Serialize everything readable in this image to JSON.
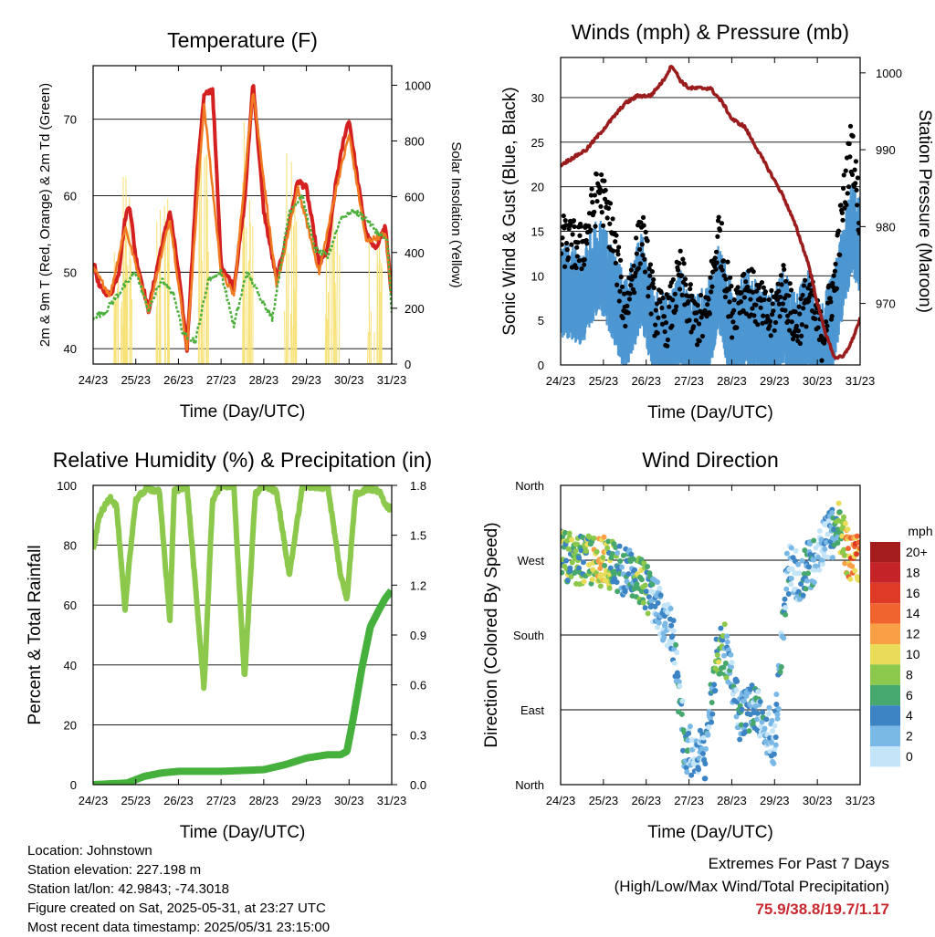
{
  "footer": {
    "location": "Location: Johnstown",
    "elevation": "Station elevation: 227.198 m",
    "latlon": "Station lat/lon: 42.9843; -74.3018",
    "created": "Figure created on Sat, 2025-05-31, at 23:27 UTC",
    "recent": "Most recent data timestamp: 2025/05/31 23:15:00"
  },
  "extremes": {
    "title": "Extremes For Past 7 Days",
    "subtitle": "(High/Low/Max Wind/Total Precipitation)",
    "values": "75.9/38.8/19.7/1.17"
  },
  "colors": {
    "temp_2m": "#d42020",
    "temp_9m": "#f07a20",
    "dewpoint": "#4caf3c",
    "solar": "#f7e27a",
    "sonic_wind": "#4d97d2",
    "gust": "#000000",
    "pressure": "#9b1c1c",
    "rh": "#8cc84b",
    "precip": "#46b03c"
  },
  "chart_data": [
    {
      "type": "line",
      "title": "Temperature (F)",
      "xlabel": "Time (Day/UTC)",
      "ylabel": "2m & 9m T (Red, Orange) & 2m Td (Green)",
      "y2label": "Solar Insolation (Yellow)",
      "xlim": [
        0,
        7
      ],
      "ylim": [
        38,
        77
      ],
      "y2lim": [
        0,
        1070
      ],
      "xticks": [
        "24/23",
        "25/23",
        "26/23",
        "27/23",
        "28/23",
        "29/23",
        "30/23",
        "31/23"
      ],
      "yticks": [
        40,
        50,
        60,
        70
      ],
      "y2ticks": [
        0,
        200,
        400,
        600,
        800,
        1000
      ],
      "grid": true,
      "series": [
        {
          "color": "#d42020",
          "x": [
            0,
            0.15,
            0.4,
            0.6,
            0.75,
            0.85,
            1,
            1.3,
            1.55,
            1.8,
            2.0,
            2.2,
            2.45,
            2.6,
            2.8,
            3.0,
            3.3,
            3.55,
            3.75,
            4.0,
            4.3,
            4.55,
            4.8,
            5.0,
            5.3,
            5.5,
            5.7,
            5.9,
            6.0,
            6.2,
            6.4,
            6.6,
            6.85,
            7.0
          ],
          "y": [
            51.5,
            48,
            47,
            50,
            57,
            59,
            52,
            45,
            52,
            58,
            50,
            40,
            64,
            73,
            74,
            51,
            48,
            59,
            75,
            58,
            49,
            55,
            62,
            61,
            51,
            53,
            62,
            68,
            70,
            62,
            55,
            53,
            56,
            47
          ]
        },
        {
          "color": "#f07a20",
          "x": [
            0,
            0.4,
            0.75,
            1.3,
            1.8,
            2.2,
            2.6,
            3.0,
            3.3,
            3.75,
            4.3,
            4.8,
            5.3,
            5.7,
            6.0,
            6.4,
            6.85,
            7.0
          ],
          "y": [
            50.5,
            47,
            56,
            45,
            57,
            40,
            72,
            50,
            47,
            74,
            48,
            61,
            50,
            61,
            68,
            54,
            55,
            47
          ]
        },
        {
          "color": "#4caf3c",
          "x": [
            0,
            0.3,
            0.7,
            1.0,
            1.3,
            1.6,
            1.9,
            2.1,
            2.4,
            2.7,
            3.0,
            3.3,
            3.6,
            3.9,
            4.2,
            4.6,
            4.9,
            5.2,
            5.5,
            5.8,
            6.1,
            6.4,
            6.7,
            6.9,
            7.0
          ],
          "y": [
            44,
            45,
            48,
            50,
            45,
            49,
            47,
            42,
            41,
            49,
            50,
            43,
            50,
            47,
            44,
            58,
            60,
            53,
            52,
            57,
            58,
            57,
            55,
            54,
            45
          ]
        }
      ],
      "solar_peaks": [
        {
          "day": 0.6,
          "peak": 500
        },
        {
          "day": 0.75,
          "peak": 910
        },
        {
          "day": 1.65,
          "peak": 650
        },
        {
          "day": 2.6,
          "peak": 1050
        },
        {
          "day": 3.6,
          "peak": 900
        },
        {
          "day": 4.6,
          "peak": 820
        },
        {
          "day": 5.6,
          "peak": 620
        },
        {
          "day": 6.6,
          "peak": 640
        }
      ]
    },
    {
      "type": "scatter",
      "title": "Winds (mph) & Pressure (mb)",
      "xlabel": "Time (Day/UTC)",
      "ylabel": "Sonic Wind & Gust (Blue, Black)",
      "y2label": "Station Pressure (Maroon)",
      "xlim": [
        0,
        7
      ],
      "ylim": [
        0,
        34.5
      ],
      "y2lim": [
        962,
        1002
      ],
      "xticks": [
        "24/23",
        "25/23",
        "26/23",
        "27/23",
        "28/23",
        "29/23",
        "30/23",
        "31/23"
      ],
      "yticks": [
        0,
        5,
        10,
        15,
        20,
        25,
        30
      ],
      "y2ticks": [
        970,
        980,
        990,
        1000
      ],
      "grid": true,
      "gust_profile": {
        "x": [
          0,
          0.5,
          0.9,
          1.2,
          1.5,
          1.9,
          2.2,
          2.5,
          2.8,
          3.1,
          3.4,
          3.7,
          4.0,
          4.3,
          4.6,
          4.9,
          5.2,
          5.5,
          5.8,
          6.1,
          6.4,
          6.6,
          6.8,
          7.0
        ],
        "y": [
          14,
          13,
          20,
          15,
          6,
          15,
          6,
          5,
          10,
          5,
          5,
          15,
          6,
          9,
          7,
          5,
          9,
          4,
          8,
          3,
          9,
          18,
          25,
          16
        ]
      },
      "wind_profile": {
        "x": [
          0,
          0.5,
          0.9,
          1.2,
          1.5,
          1.9,
          2.2,
          2.5,
          2.8,
          3.1,
          3.4,
          3.7,
          4.0,
          4.3,
          4.6,
          4.9,
          5.2,
          5.5,
          5.8,
          6.1,
          6.4,
          6.6,
          6.8,
          7.0
        ],
        "y": [
          8,
          7,
          11,
          8,
          4,
          9,
          3,
          2,
          5,
          2,
          3,
          8,
          3,
          5,
          4,
          2,
          5,
          2,
          5,
          1,
          5,
          10,
          15,
          13
        ]
      },
      "pressure": {
        "x": [
          0,
          0.3,
          0.6,
          0.9,
          1.2,
          1.5,
          1.8,
          2.1,
          2.4,
          2.6,
          2.8,
          3.0,
          3.2,
          3.5,
          3.8,
          4.0,
          4.3,
          4.6,
          4.9,
          5.2,
          5.5,
          5.8,
          6.0,
          6.2,
          6.4,
          6.6,
          6.8,
          7.0
        ],
        "y": [
          988,
          989,
          990,
          992,
          994,
          996,
          997,
          997,
          999,
          1001,
          999,
          998,
          998,
          998,
          996,
          994,
          993,
          990,
          987,
          984,
          980,
          975,
          970,
          966,
          963,
          963,
          965,
          968
        ]
      }
    },
    {
      "type": "line",
      "title": "Relative Humidity (%) & Precipitation (in)",
      "xlabel": "Time (Day/UTC)",
      "ylabel": "Percent & Total Rainfall",
      "xlim": [
        0,
        7
      ],
      "ylim": [
        0,
        100
      ],
      "y2lim": [
        0,
        1.8
      ],
      "xticks": [
        "24/23",
        "25/23",
        "26/23",
        "27/23",
        "28/23",
        "29/23",
        "30/23",
        "31/23"
      ],
      "yticks": [
        0,
        20,
        40,
        60,
        80,
        100
      ],
      "y2ticks": [
        "0.0",
        "0.3",
        "0.6",
        "0.9",
        "1.2",
        "1.5",
        "1.8"
      ],
      "grid": true,
      "series": [
        {
          "color": "#8cc84b",
          "x": [
            0,
            0.15,
            0.4,
            0.55,
            0.75,
            0.85,
            1.0,
            1.25,
            1.55,
            1.8,
            1.9,
            2.2,
            2.6,
            2.8,
            3.0,
            3.3,
            3.55,
            3.8,
            4.0,
            4.3,
            4.6,
            4.9,
            5.0,
            5.3,
            5.5,
            5.8,
            5.95,
            6.15,
            6.45,
            6.7,
            6.85,
            6.95,
            7.0
          ],
          "y": [
            78,
            90,
            96,
            93,
            58,
            75,
            95,
            99,
            98,
            55,
            98,
            100,
            32,
            95,
            100,
            99,
            35,
            97,
            100,
            98,
            70,
            99,
            100,
            99,
            100,
            70,
            62,
            97,
            99,
            98,
            94,
            92,
            95
          ]
        },
        {
          "color": "#46b03c",
          "x": [
            0,
            0.8,
            1.2,
            1.6,
            2.0,
            3.0,
            4.0,
            4.5,
            5.0,
            5.5,
            5.8,
            5.95,
            6.1,
            6.3,
            6.5,
            6.7,
            6.85,
            7.0
          ],
          "y": [
            0.0,
            0.01,
            0.05,
            0.07,
            0.08,
            0.08,
            0.09,
            0.12,
            0.16,
            0.18,
            0.18,
            0.2,
            0.4,
            0.7,
            0.95,
            1.05,
            1.12,
            1.17
          ]
        }
      ]
    },
    {
      "type": "scatter",
      "title": "Wind Direction",
      "xlabel": "Time (Day/UTC)",
      "ylabel": "Direction (Colored By Speed)",
      "xlim": [
        0,
        7
      ],
      "ylim": [
        0,
        360
      ],
      "xticks": [
        "24/23",
        "25/23",
        "26/23",
        "27/23",
        "28/23",
        "29/23",
        "30/23",
        "31/23"
      ],
      "yticks": [
        "North",
        "East",
        "South",
        "West",
        "North"
      ],
      "grid": true,
      "legend": {
        "title": "mph",
        "placement": "right",
        "labels": [
          "20+",
          "18",
          "16",
          "14",
          "12",
          "10",
          "8",
          "6",
          "4",
          "2",
          "0"
        ],
        "colors": [
          "#a51c1c",
          "#c42428",
          "#de3a26",
          "#f06430",
          "#f9a046",
          "#e8dc58",
          "#8cc84b",
          "#46a86c",
          "#3c84c4",
          "#7ab8e6",
          "#c4e4f8"
        ]
      },
      "direction_profile": {
        "x": [
          0,
          0.5,
          1.0,
          1.3,
          1.6,
          1.8,
          2.1,
          2.4,
          2.6,
          2.9,
          3.1,
          3.4,
          3.6,
          3.8,
          4.0,
          4.2,
          4.4,
          4.6,
          4.8,
          5.0,
          5.3,
          5.6,
          5.9,
          6.1,
          6.3,
          6.5,
          6.7,
          6.9,
          7.0
        ],
        "y": [
          275,
          270,
          268,
          262,
          255,
          250,
          230,
          200,
          190,
          45,
          40,
          35,
          140,
          170,
          130,
          80,
          90,
          95,
          70,
          50,
          260,
          250,
          270,
          290,
          300,
          310,
          280,
          270,
          272
        ]
      }
    }
  ]
}
